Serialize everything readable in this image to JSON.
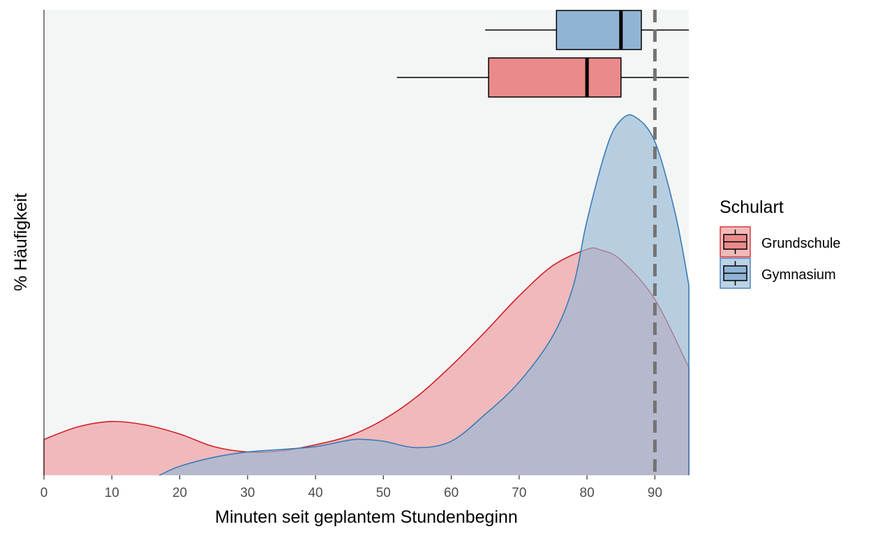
{
  "chart_data": {
    "type": "area",
    "title": "",
    "xlabel": "Minuten seit geplantem Stundenbeginn",
    "ylabel": "% Häufigkeit",
    "xlim": [
      0,
      95
    ],
    "xticks": [
      "0",
      "10",
      "20",
      "30",
      "40",
      "50",
      "60",
      "70",
      "80",
      "90"
    ],
    "reference_line": {
      "x": 90,
      "style": "dashed",
      "color": "#737373"
    },
    "grid": false,
    "legend": {
      "title": "Schulart",
      "position": "right",
      "items": [
        {
          "label": "Grundschule",
          "fill": "#ea8a8b",
          "border": "#d63a3d"
        },
        {
          "label": "Gymnasium",
          "fill": "#91b4d4",
          "border": "#4a86bd"
        }
      ]
    },
    "series": [
      {
        "name": "Grundschule",
        "fill": "#ee9a9c",
        "stroke": "#d0202a",
        "density": {
          "x": [
            0,
            5,
            10,
            15,
            20,
            25,
            30,
            35,
            40,
            45,
            50,
            55,
            60,
            65,
            70,
            75,
            80,
            82,
            85,
            90,
            95
          ],
          "y": [
            0.1,
            0.135,
            0.15,
            0.14,
            0.115,
            0.08,
            0.065,
            0.068,
            0.085,
            0.11,
            0.155,
            0.22,
            0.305,
            0.4,
            0.5,
            0.585,
            0.63,
            0.628,
            0.6,
            0.49,
            0.3
          ]
        },
        "box": {
          "min": 52,
          "q1": 65.5,
          "median": 80,
          "q3": 85,
          "max": 95,
          "fill": "#ea8a8b"
        }
      },
      {
        "name": "Gymnasium",
        "fill": "#97b9d6",
        "stroke": "#3a7bb6",
        "density": {
          "x": [
            17,
            20,
            25,
            30,
            35,
            40,
            45,
            47,
            50,
            55,
            60,
            65,
            70,
            75,
            78,
            80,
            83,
            85,
            87,
            90,
            93,
            95
          ],
          "y": [
            0.0,
            0.025,
            0.05,
            0.065,
            0.072,
            0.08,
            0.098,
            0.1,
            0.095,
            0.077,
            0.095,
            0.17,
            0.26,
            0.39,
            0.53,
            0.71,
            0.92,
            0.99,
            1.0,
            0.93,
            0.73,
            0.53
          ]
        },
        "box": {
          "min": 65,
          "q1": 75.5,
          "median": 85,
          "q3": 88,
          "max": 95,
          "fill": "#91b4d4"
        }
      }
    ]
  }
}
